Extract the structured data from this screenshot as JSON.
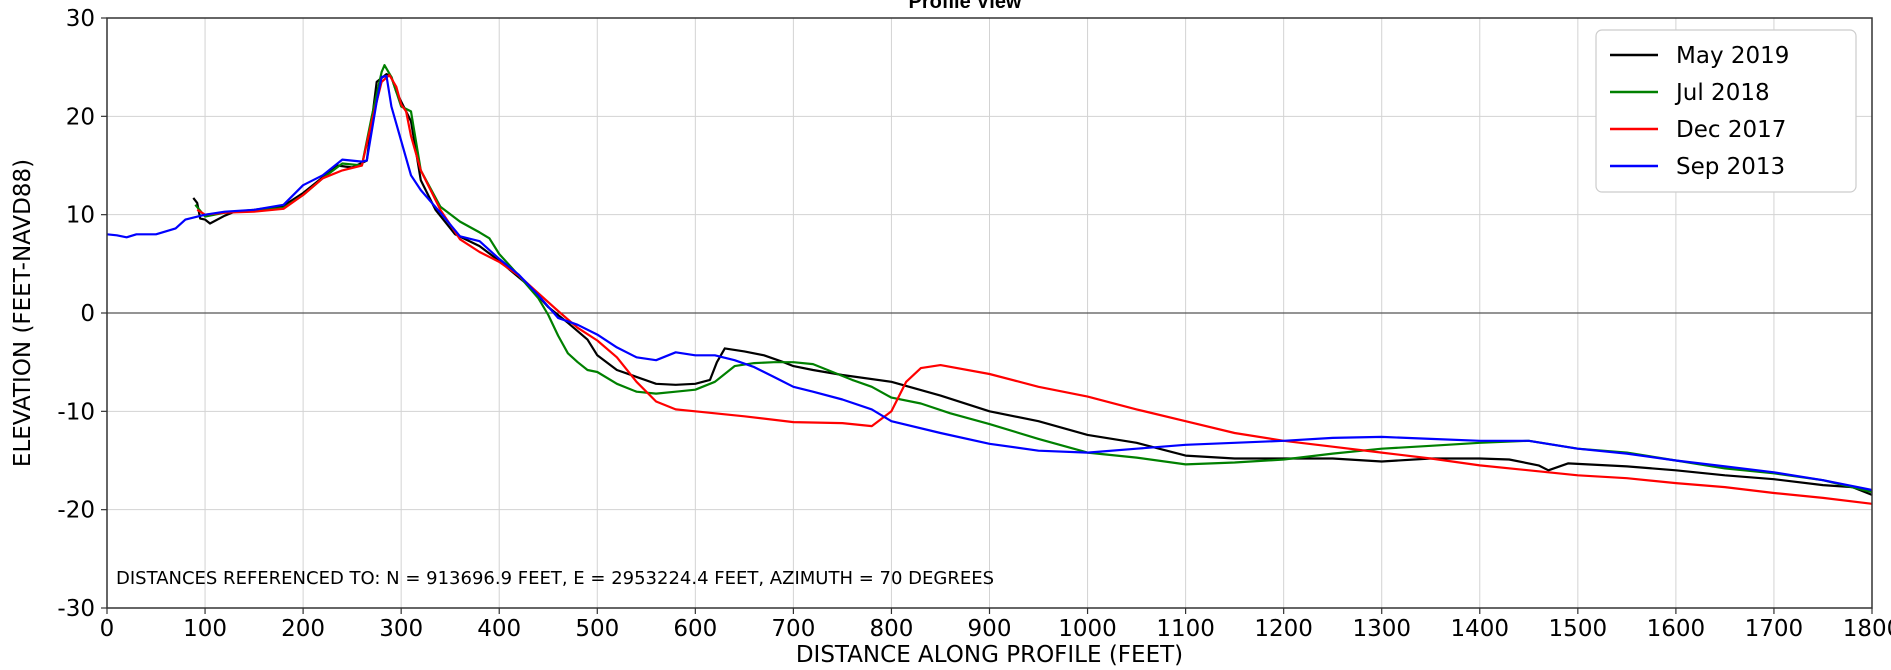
{
  "chart_data": {
    "type": "line",
    "title": "Profile View",
    "xlabel": "DISTANCE ALONG PROFILE (FEET)",
    "ylabel": "ELEVATION (FEET-NAVD88)",
    "xlim": [
      0,
      1800
    ],
    "ylim": [
      -30,
      30
    ],
    "x_ticks": [
      0,
      100,
      200,
      300,
      400,
      500,
      600,
      700,
      800,
      900,
      1000,
      1100,
      1200,
      1300,
      1400,
      1500,
      1600,
      1700,
      1800
    ],
    "y_ticks": [
      -30,
      -20,
      -10,
      0,
      10,
      20,
      30
    ],
    "grid": true,
    "zero_line": true,
    "legend_position": "top-right",
    "annotation": "DISTANCES REFERENCED TO: N = 913696.9 FEET, E = 2953224.4 FEET, AZIMUTH = 70 DEGREES",
    "series": [
      {
        "name": "May 2019",
        "color": "#000000",
        "points": [
          [
            88,
            11.7
          ],
          [
            92,
            11.2
          ],
          [
            95,
            9.6
          ],
          [
            100,
            9.5
          ],
          [
            105,
            9.1
          ],
          [
            120,
            9.9
          ],
          [
            130,
            10.3
          ],
          [
            150,
            10.5
          ],
          [
            180,
            10.9
          ],
          [
            200,
            12.2
          ],
          [
            220,
            13.8
          ],
          [
            235,
            15.0
          ],
          [
            250,
            14.8
          ],
          [
            265,
            15.5
          ],
          [
            275,
            23.5
          ],
          [
            285,
            24.3
          ],
          [
            290,
            24.0
          ],
          [
            295,
            22.5
          ],
          [
            300,
            21.5
          ],
          [
            310,
            19.5
          ],
          [
            320,
            13.5
          ],
          [
            335,
            10.5
          ],
          [
            355,
            8.0
          ],
          [
            380,
            6.8
          ],
          [
            400,
            5.3
          ],
          [
            430,
            2.8
          ],
          [
            450,
            0.6
          ],
          [
            470,
            -1.0
          ],
          [
            490,
            -2.7
          ],
          [
            500,
            -4.3
          ],
          [
            520,
            -5.8
          ],
          [
            540,
            -6.5
          ],
          [
            560,
            -7.2
          ],
          [
            580,
            -7.3
          ],
          [
            600,
            -7.2
          ],
          [
            615,
            -6.8
          ],
          [
            622,
            -5.0
          ],
          [
            630,
            -3.6
          ],
          [
            650,
            -3.9
          ],
          [
            670,
            -4.3
          ],
          [
            690,
            -5.0
          ],
          [
            700,
            -5.4
          ],
          [
            720,
            -5.8
          ],
          [
            750,
            -6.3
          ],
          [
            800,
            -7.0
          ],
          [
            850,
            -8.4
          ],
          [
            900,
            -10.0
          ],
          [
            950,
            -11.0
          ],
          [
            1000,
            -12.4
          ],
          [
            1050,
            -13.2
          ],
          [
            1100,
            -14.5
          ],
          [
            1150,
            -14.8
          ],
          [
            1200,
            -14.8
          ],
          [
            1250,
            -14.8
          ],
          [
            1300,
            -15.1
          ],
          [
            1350,
            -14.8
          ],
          [
            1400,
            -14.8
          ],
          [
            1430,
            -14.9
          ],
          [
            1460,
            -15.5
          ],
          [
            1470,
            -16.0
          ],
          [
            1490,
            -15.3
          ],
          [
            1550,
            -15.6
          ],
          [
            1600,
            -16.0
          ],
          [
            1650,
            -16.5
          ],
          [
            1700,
            -16.9
          ],
          [
            1750,
            -17.5
          ],
          [
            1780,
            -17.7
          ],
          [
            1800,
            -18.5
          ]
        ]
      },
      {
        "name": "Jul 2018",
        "color": "#008000",
        "points": [
          [
            90,
            11.0
          ],
          [
            100,
            9.8
          ],
          [
            120,
            10.2
          ],
          [
            150,
            10.4
          ],
          [
            180,
            10.7
          ],
          [
            200,
            12.0
          ],
          [
            220,
            13.7
          ],
          [
            240,
            15.2
          ],
          [
            260,
            15.0
          ],
          [
            270,
            20.0
          ],
          [
            280,
            24.5
          ],
          [
            283,
            25.2
          ],
          [
            290,
            24.0
          ],
          [
            300,
            21.0
          ],
          [
            310,
            20.5
          ],
          [
            320,
            14.5
          ],
          [
            340,
            10.8
          ],
          [
            360,
            9.3
          ],
          [
            380,
            8.2
          ],
          [
            390,
            7.6
          ],
          [
            400,
            6.0
          ],
          [
            420,
            3.8
          ],
          [
            440,
            1.5
          ],
          [
            450,
            -0.2
          ],
          [
            460,
            -2.3
          ],
          [
            470,
            -4.1
          ],
          [
            480,
            -5.0
          ],
          [
            490,
            -5.8
          ],
          [
            500,
            -6.0
          ],
          [
            520,
            -7.2
          ],
          [
            540,
            -8.0
          ],
          [
            560,
            -8.2
          ],
          [
            580,
            -8.0
          ],
          [
            600,
            -7.8
          ],
          [
            620,
            -7.0
          ],
          [
            640,
            -5.4
          ],
          [
            660,
            -5.1
          ],
          [
            680,
            -5.0
          ],
          [
            700,
            -5.0
          ],
          [
            720,
            -5.2
          ],
          [
            740,
            -6.0
          ],
          [
            760,
            -6.8
          ],
          [
            780,
            -7.5
          ],
          [
            800,
            -8.6
          ],
          [
            830,
            -9.2
          ],
          [
            860,
            -10.2
          ],
          [
            900,
            -11.3
          ],
          [
            950,
            -12.8
          ],
          [
            1000,
            -14.2
          ],
          [
            1050,
            -14.7
          ],
          [
            1100,
            -15.4
          ],
          [
            1150,
            -15.2
          ],
          [
            1200,
            -14.9
          ],
          [
            1250,
            -14.3
          ],
          [
            1300,
            -13.8
          ],
          [
            1350,
            -13.5
          ],
          [
            1400,
            -13.2
          ],
          [
            1450,
            -13.0
          ],
          [
            1500,
            -13.8
          ],
          [
            1550,
            -14.2
          ],
          [
            1600,
            -15.0
          ],
          [
            1650,
            -15.8
          ],
          [
            1700,
            -16.3
          ],
          [
            1750,
            -17.0
          ],
          [
            1800,
            -18.2
          ]
        ]
      },
      {
        "name": "Dec 2017",
        "color": "#ff0000",
        "points": [
          [
            92,
            10.5
          ],
          [
            100,
            10.0
          ],
          [
            120,
            10.2
          ],
          [
            150,
            10.3
          ],
          [
            180,
            10.6
          ],
          [
            200,
            12.0
          ],
          [
            220,
            13.7
          ],
          [
            240,
            14.5
          ],
          [
            260,
            15.0
          ],
          [
            270,
            19.5
          ],
          [
            280,
            23.5
          ],
          [
            288,
            24.2
          ],
          [
            295,
            23.0
          ],
          [
            300,
            21.2
          ],
          [
            305,
            20.5
          ],
          [
            310,
            18.0
          ],
          [
            320,
            14.5
          ],
          [
            340,
            10.5
          ],
          [
            360,
            7.5
          ],
          [
            380,
            6.2
          ],
          [
            400,
            5.2
          ],
          [
            420,
            3.8
          ],
          [
            440,
            2.0
          ],
          [
            460,
            0.2
          ],
          [
            480,
            -1.5
          ],
          [
            500,
            -2.8
          ],
          [
            520,
            -4.5
          ],
          [
            540,
            -7.0
          ],
          [
            560,
            -9.0
          ],
          [
            580,
            -9.8
          ],
          [
            600,
            -10.0
          ],
          [
            650,
            -10.5
          ],
          [
            700,
            -11.1
          ],
          [
            750,
            -11.2
          ],
          [
            780,
            -11.5
          ],
          [
            800,
            -10.0
          ],
          [
            815,
            -7.0
          ],
          [
            830,
            -5.6
          ],
          [
            850,
            -5.3
          ],
          [
            900,
            -6.2
          ],
          [
            950,
            -7.5
          ],
          [
            1000,
            -8.5
          ],
          [
            1050,
            -9.8
          ],
          [
            1100,
            -11.0
          ],
          [
            1150,
            -12.2
          ],
          [
            1200,
            -13.0
          ],
          [
            1250,
            -13.6
          ],
          [
            1300,
            -14.2
          ],
          [
            1350,
            -14.8
          ],
          [
            1400,
            -15.5
          ],
          [
            1450,
            -16.0
          ],
          [
            1500,
            -16.5
          ],
          [
            1550,
            -16.8
          ],
          [
            1600,
            -17.3
          ],
          [
            1650,
            -17.7
          ],
          [
            1700,
            -18.3
          ],
          [
            1750,
            -18.8
          ],
          [
            1800,
            -19.4
          ]
        ]
      },
      {
        "name": "Sep 2013",
        "color": "#0000ff",
        "points": [
          [
            0,
            8.0
          ],
          [
            10,
            7.9
          ],
          [
            20,
            7.7
          ],
          [
            30,
            8.0
          ],
          [
            50,
            8.0
          ],
          [
            70,
            8.6
          ],
          [
            80,
            9.5
          ],
          [
            100,
            10.0
          ],
          [
            120,
            10.3
          ],
          [
            150,
            10.5
          ],
          [
            180,
            11.0
          ],
          [
            200,
            13.0
          ],
          [
            220,
            14.0
          ],
          [
            240,
            15.6
          ],
          [
            260,
            15.4
          ],
          [
            265,
            15.5
          ],
          [
            275,
            21.5
          ],
          [
            280,
            24.0
          ],
          [
            285,
            24.1
          ],
          [
            290,
            21.0
          ],
          [
            300,
            17.5
          ],
          [
            310,
            14.0
          ],
          [
            320,
            12.5
          ],
          [
            340,
            10.2
          ],
          [
            360,
            7.8
          ],
          [
            380,
            7.3
          ],
          [
            400,
            5.5
          ],
          [
            420,
            3.9
          ],
          [
            440,
            1.8
          ],
          [
            460,
            -0.5
          ],
          [
            480,
            -1.2
          ],
          [
            500,
            -2.2
          ],
          [
            520,
            -3.5
          ],
          [
            540,
            -4.5
          ],
          [
            560,
            -4.8
          ],
          [
            580,
            -4.0
          ],
          [
            600,
            -4.3
          ],
          [
            620,
            -4.3
          ],
          [
            640,
            -4.8
          ],
          [
            660,
            -5.5
          ],
          [
            680,
            -6.5
          ],
          [
            700,
            -7.5
          ],
          [
            720,
            -8.0
          ],
          [
            750,
            -8.8
          ],
          [
            780,
            -9.8
          ],
          [
            800,
            -11.0
          ],
          [
            850,
            -12.2
          ],
          [
            900,
            -13.3
          ],
          [
            950,
            -14.0
          ],
          [
            1000,
            -14.2
          ],
          [
            1050,
            -13.8
          ],
          [
            1100,
            -13.4
          ],
          [
            1150,
            -13.2
          ],
          [
            1200,
            -13.0
          ],
          [
            1250,
            -12.7
          ],
          [
            1300,
            -12.6
          ],
          [
            1350,
            -12.8
          ],
          [
            1400,
            -13.0
          ],
          [
            1450,
            -13.0
          ],
          [
            1500,
            -13.8
          ],
          [
            1550,
            -14.3
          ],
          [
            1600,
            -15.0
          ],
          [
            1650,
            -15.6
          ],
          [
            1700,
            -16.2
          ],
          [
            1750,
            -17.0
          ],
          [
            1800,
            -18.0
          ]
        ]
      }
    ]
  }
}
